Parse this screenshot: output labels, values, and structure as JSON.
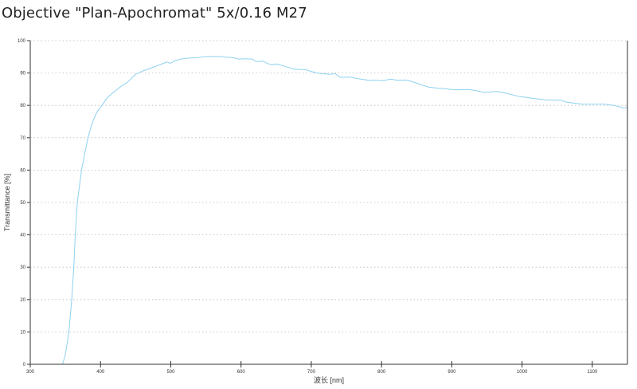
{
  "title": "Objective \"Plan-Apochromat\" 5x/0.16 M27",
  "chart_data": {
    "type": "line",
    "title": "Objective \"Plan-Apochromat\" 5x/0.16 M27",
    "xlabel": "波长 [nm]",
    "ylabel": "Transmittance [%]",
    "xlim": [
      300,
      1150
    ],
    "ylim": [
      0,
      100
    ],
    "xticks": [
      300,
      400,
      500,
      600,
      700,
      800,
      900,
      1000,
      1100
    ],
    "yticks": [
      0,
      10,
      20,
      30,
      40,
      50,
      60,
      70,
      80,
      90,
      100
    ],
    "grid": "horizontal dotted",
    "line_color": "#8ed2ef",
    "series": [
      {
        "x": [
          300,
          346,
          350,
          355,
          359,
          362,
          364,
          367,
          373,
          382,
          389,
          395,
          402,
          410,
          418,
          430,
          438,
          450,
          462,
          473,
          485,
          495,
          499,
          507,
          514,
          525,
          537,
          548,
          560,
          571,
          580,
          590,
          597,
          606,
          616,
          622,
          631,
          638,
          645,
          651,
          666,
          677,
          692,
          708,
          726,
          734,
          741,
          756,
          768,
          783,
          790,
          802,
          813,
          821,
          836,
          847,
          866,
          881,
          889,
          904,
          923,
          934,
          946,
          964,
          976,
          995,
          1014,
          1033,
          1055,
          1063,
          1085,
          1116,
          1131,
          1144,
          1150
        ],
        "y": [
          0,
          0,
          3,
          10,
          20,
          30,
          40,
          50,
          60,
          70,
          75,
          78,
          80,
          82.5,
          84,
          86,
          87.1,
          89.6,
          90.8,
          91.6,
          92.6,
          93.4,
          93.0,
          93.9,
          94.3,
          94.6,
          94.7,
          95.1,
          95.1,
          95.1,
          94.9,
          94.7,
          94.3,
          94.4,
          94.3,
          93.5,
          93.7,
          92.9,
          92.5,
          92.8,
          91.8,
          91.2,
          91.0,
          90.0,
          89.6,
          89.8,
          88.7,
          88.7,
          88.2,
          87.7,
          87.8,
          87.6,
          88.1,
          87.8,
          87.8,
          87.1,
          85.7,
          85.3,
          85.2,
          84.8,
          84.9,
          84.6,
          84.0,
          84.3,
          83.8,
          82.8,
          82.2,
          81.7,
          81.6,
          81.0,
          80.4,
          80.4,
          80.0,
          79.2,
          79.3
        ]
      }
    ]
  }
}
